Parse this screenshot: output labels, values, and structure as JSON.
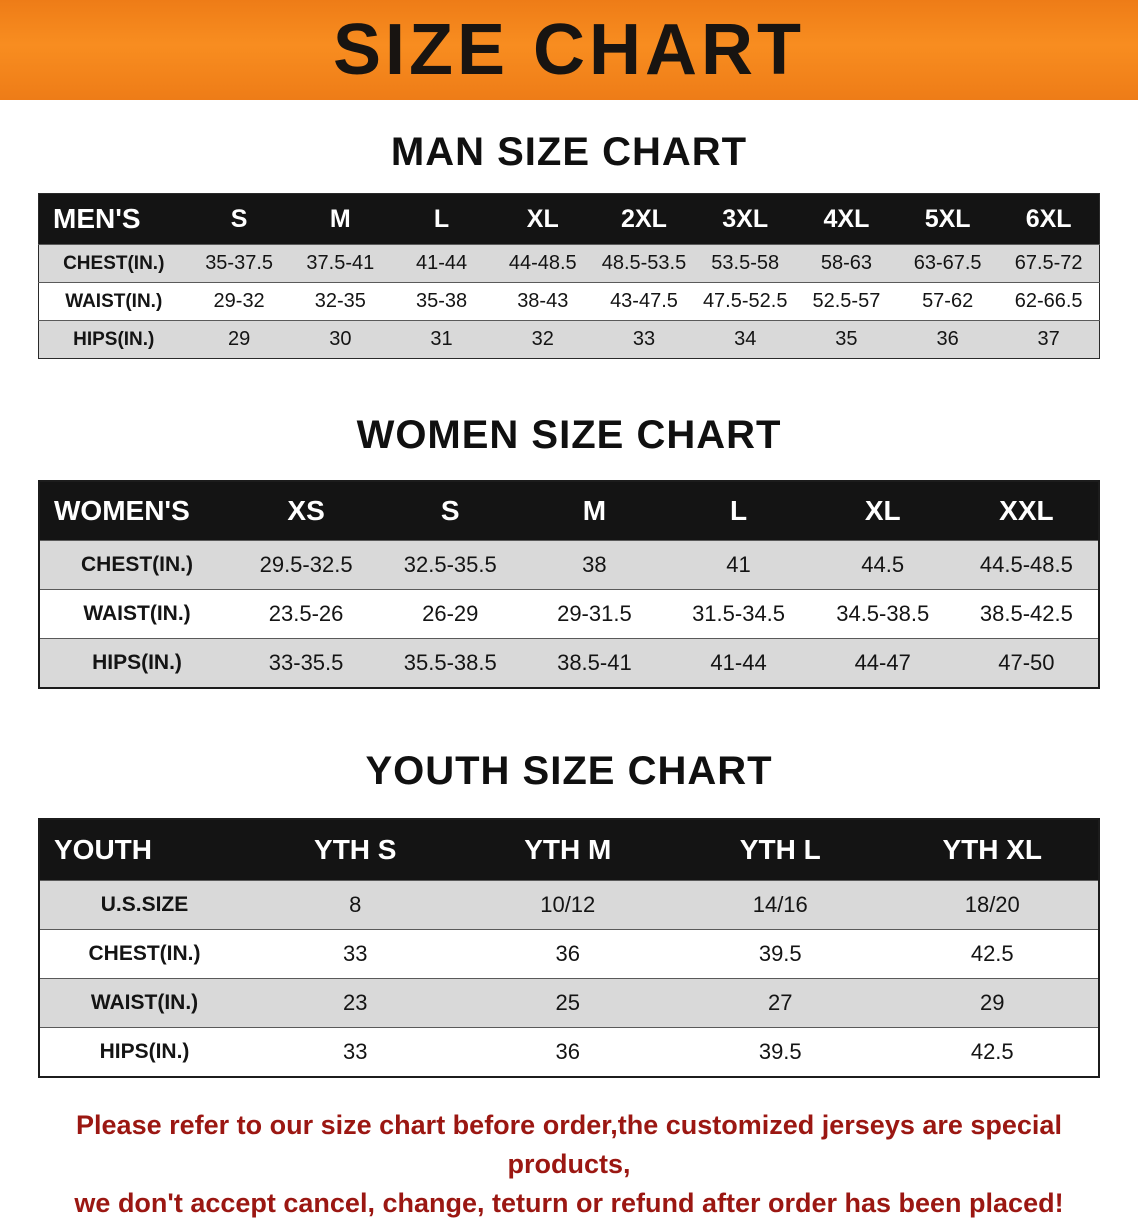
{
  "banner": {
    "title": "SIZE CHART",
    "bg_color": "#f5831f",
    "text_color": "#181411"
  },
  "colors": {
    "table_header_bg": "#141414",
    "table_header_text": "#ffffff",
    "row_stripe_gray": "#d9d9d9",
    "footer_red": "#9b1712"
  },
  "chart_data": [
    {
      "type": "table",
      "title": "MAN SIZE CHART",
      "columns": [
        "MEN'S",
        "S",
        "M",
        "L",
        "XL",
        "2XL",
        "3XL",
        "4XL",
        "5XL",
        "6XL"
      ],
      "rows": [
        [
          "CHEST(IN.)",
          "35-37.5",
          "37.5-41",
          "41-44",
          "44-48.5",
          "48.5-53.5",
          "53.5-58",
          "58-63",
          "63-67.5",
          "67.5-72"
        ],
        [
          "WAIST(IN.)",
          "29-32",
          "32-35",
          "35-38",
          "38-43",
          "43-47.5",
          "47.5-52.5",
          "52.5-57",
          "57-62",
          "62-66.5"
        ],
        [
          "HIPS(IN.)",
          "29",
          "30",
          "31",
          "32",
          "33",
          "34",
          "35",
          "36",
          "37"
        ]
      ]
    },
    {
      "type": "table",
      "title": "WOMEN SIZE CHART",
      "columns": [
        "WOMEN'S",
        "XS",
        "S",
        "M",
        "L",
        "XL",
        "XXL"
      ],
      "rows": [
        [
          "CHEST(IN.)",
          "29.5-32.5",
          "32.5-35.5",
          "38",
          "41",
          "44.5",
          "44.5-48.5"
        ],
        [
          "WAIST(IN.)",
          "23.5-26",
          "26-29",
          "29-31.5",
          "31.5-34.5",
          "34.5-38.5",
          "38.5-42.5"
        ],
        [
          "HIPS(IN.)",
          "33-35.5",
          "35.5-38.5",
          "38.5-41",
          "41-44",
          "44-47",
          "47-50"
        ]
      ]
    },
    {
      "type": "table",
      "title": "YOUTH SIZE CHART",
      "columns": [
        "YOUTH",
        "YTH S",
        "YTH M",
        "YTH L",
        "YTH XL"
      ],
      "rows": [
        [
          "U.S.SIZE",
          "8",
          "10/12",
          "14/16",
          "18/20"
        ],
        [
          "CHEST(IN.)",
          "33",
          "36",
          "39.5",
          "42.5"
        ],
        [
          "WAIST(IN.)",
          "23",
          "25",
          "27",
          "29"
        ],
        [
          "HIPS(IN.)",
          "33",
          "36",
          "39.5",
          "42.5"
        ]
      ]
    }
  ],
  "footer": {
    "line1": "Please refer to our size chart before order,the customized jerseys are special products,",
    "line2": "we don't accept cancel, change, teturn or refund after order has been placed!"
  }
}
